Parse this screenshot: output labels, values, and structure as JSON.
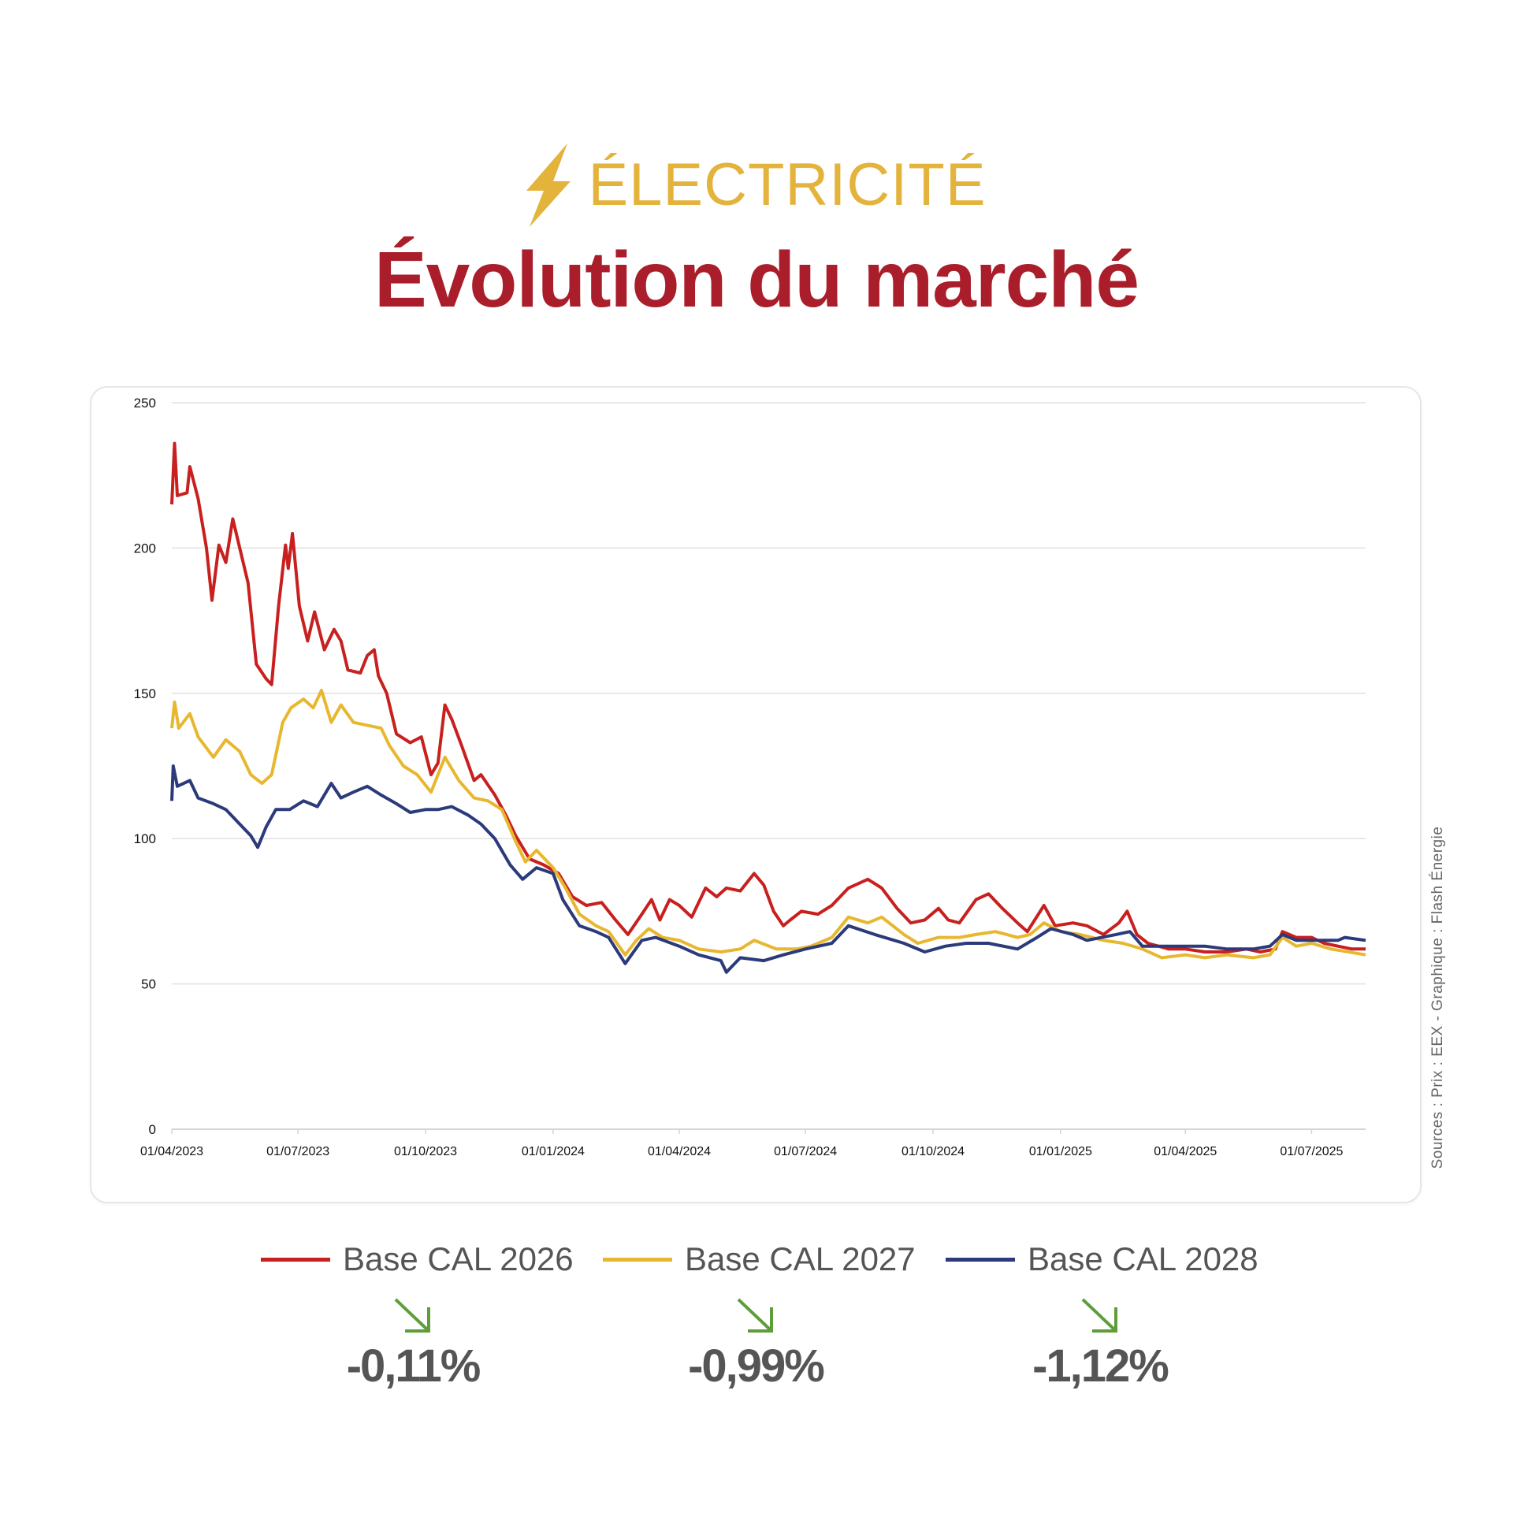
{
  "header": {
    "kicker": "ÉLECTRICITÉ",
    "kicker_icon": "lightning-bolt-icon",
    "title": "Évolution du marché",
    "kicker_color": "#e4b33c",
    "title_color": "#a91e2a"
  },
  "source": "Sources : Prix : EEX - Graphique : Flash Énergie",
  "legend": [
    {
      "label": "Base CAL 2026",
      "color": "#c8201f"
    },
    {
      "label": "Base CAL 2027",
      "color": "#e8b730"
    },
    {
      "label": "Base CAL 2028",
      "color": "#2b3a7a"
    }
  ],
  "changes": [
    {
      "value": "-0,11%",
      "icon": "arrow-down-right-icon",
      "color": "#5e9e3a"
    },
    {
      "value": "-0,99%",
      "icon": "arrow-down-right-icon",
      "color": "#5e9e3a"
    },
    {
      "value": "-1,12%",
      "icon": "arrow-down-right-icon",
      "color": "#5e9e3a"
    }
  ],
  "chart_data": {
    "type": "line",
    "title": "",
    "xlabel": "",
    "ylabel": "",
    "ylim": [
      0,
      250
    ],
    "yticks": [
      0,
      50,
      100,
      150,
      200,
      250
    ],
    "xlim": [
      "2023-04-01",
      "2025-08-09"
    ],
    "xticks": [
      "2023-04-01",
      "2023-07-01",
      "2023-10-01",
      "2024-01-01",
      "2024-04-01",
      "2024-07-01",
      "2024-10-01",
      "2025-01-01",
      "2025-04-01",
      "2025-07-01"
    ],
    "xtick_labels": [
      "01/04/2023",
      "01/07/2023",
      "01/10/2023",
      "01/01/2024",
      "01/04/2024",
      "01/07/2024",
      "01/10/2024",
      "01/01/2025",
      "01/04/2025",
      "01/07/2025"
    ],
    "grid": "horizontal",
    "legend_position": "bottom",
    "series": [
      {
        "name": "Base CAL 2026",
        "color": "#c8201f",
        "points": [
          [
            "2023-04-01",
            215
          ],
          [
            "2023-04-03",
            236
          ],
          [
            "2023-04-05",
            218
          ],
          [
            "2023-04-12",
            219
          ],
          [
            "2023-04-14",
            228
          ],
          [
            "2023-04-20",
            217
          ],
          [
            "2023-04-26",
            200
          ],
          [
            "2023-04-30",
            182
          ],
          [
            "2023-05-05",
            201
          ],
          [
            "2023-05-10",
            195
          ],
          [
            "2023-05-15",
            210
          ],
          [
            "2023-05-20",
            200
          ],
          [
            "2023-05-26",
            188
          ],
          [
            "2023-06-01",
            160
          ],
          [
            "2023-06-08",
            155
          ],
          [
            "2023-06-12",
            153
          ],
          [
            "2023-06-17",
            180
          ],
          [
            "2023-06-22",
            201
          ],
          [
            "2023-06-24",
            193
          ],
          [
            "2023-06-27",
            205
          ],
          [
            "2023-07-02",
            180
          ],
          [
            "2023-07-08",
            168
          ],
          [
            "2023-07-13",
            178
          ],
          [
            "2023-07-20",
            165
          ],
          [
            "2023-07-27",
            172
          ],
          [
            "2023-08-01",
            168
          ],
          [
            "2023-08-06",
            158
          ],
          [
            "2023-08-15",
            157
          ],
          [
            "2023-08-20",
            163
          ],
          [
            "2023-08-25",
            165
          ],
          [
            "2023-08-28",
            156
          ],
          [
            "2023-09-03",
            150
          ],
          [
            "2023-09-10",
            136
          ],
          [
            "2023-09-20",
            133
          ],
          [
            "2023-09-28",
            135
          ],
          [
            "2023-10-05",
            122
          ],
          [
            "2023-10-10",
            126
          ],
          [
            "2023-10-15",
            146
          ],
          [
            "2023-10-20",
            141
          ],
          [
            "2023-10-27",
            132
          ],
          [
            "2023-11-05",
            120
          ],
          [
            "2023-11-10",
            122
          ],
          [
            "2023-11-20",
            115
          ],
          [
            "2023-11-28",
            108
          ],
          [
            "2023-12-05",
            101
          ],
          [
            "2023-12-15",
            93
          ],
          [
            "2023-12-25",
            91
          ],
          [
            "2024-01-05",
            88
          ],
          [
            "2024-01-15",
            80
          ],
          [
            "2024-01-25",
            77
          ],
          [
            "2024-02-05",
            78
          ],
          [
            "2024-02-15",
            72
          ],
          [
            "2024-02-24",
            67
          ],
          [
            "2024-03-05",
            74
          ],
          [
            "2024-03-12",
            79
          ],
          [
            "2024-03-18",
            72
          ],
          [
            "2024-03-25",
            79
          ],
          [
            "2024-04-01",
            77
          ],
          [
            "2024-04-10",
            73
          ],
          [
            "2024-04-20",
            83
          ],
          [
            "2024-04-28",
            80
          ],
          [
            "2024-05-05",
            83
          ],
          [
            "2024-05-15",
            82
          ],
          [
            "2024-05-25",
            88
          ],
          [
            "2024-06-01",
            84
          ],
          [
            "2024-06-08",
            75
          ],
          [
            "2024-06-15",
            70
          ],
          [
            "2024-06-20",
            72
          ],
          [
            "2024-06-28",
            75
          ],
          [
            "2024-07-10",
            74
          ],
          [
            "2024-07-20",
            77
          ],
          [
            "2024-08-01",
            83
          ],
          [
            "2024-08-15",
            86
          ],
          [
            "2024-08-25",
            83
          ],
          [
            "2024-09-05",
            76
          ],
          [
            "2024-09-15",
            71
          ],
          [
            "2024-09-25",
            72
          ],
          [
            "2024-10-05",
            76
          ],
          [
            "2024-10-12",
            72
          ],
          [
            "2024-10-20",
            71
          ],
          [
            "2024-11-01",
            79
          ],
          [
            "2024-11-10",
            81
          ],
          [
            "2024-11-20",
            76
          ],
          [
            "2024-12-01",
            71
          ],
          [
            "2024-12-08",
            68
          ],
          [
            "2024-12-20",
            77
          ],
          [
            "2024-12-28",
            70
          ],
          [
            "2025-01-10",
            71
          ],
          [
            "2025-01-20",
            70
          ],
          [
            "2025-02-01",
            67
          ],
          [
            "2025-02-12",
            71
          ],
          [
            "2025-02-18",
            75
          ],
          [
            "2025-02-25",
            67
          ],
          [
            "2025-03-05",
            64
          ],
          [
            "2025-03-20",
            62
          ],
          [
            "2025-04-01",
            62
          ],
          [
            "2025-04-15",
            61
          ],
          [
            "2025-05-01",
            61
          ],
          [
            "2025-05-15",
            62
          ],
          [
            "2025-05-25",
            61
          ],
          [
            "2025-06-05",
            62
          ],
          [
            "2025-06-10",
            68
          ],
          [
            "2025-06-20",
            66
          ],
          [
            "2025-07-01",
            66
          ],
          [
            "2025-07-10",
            64
          ],
          [
            "2025-07-20",
            63
          ],
          [
            "2025-07-30",
            62
          ],
          [
            "2025-08-09",
            62
          ]
        ]
      },
      {
        "name": "Base CAL 2027",
        "color": "#e8b730",
        "points": [
          [
            "2023-04-01",
            138
          ],
          [
            "2023-04-03",
            147
          ],
          [
            "2023-04-06",
            138
          ],
          [
            "2023-04-14",
            143
          ],
          [
            "2023-04-20",
            135
          ],
          [
            "2023-05-01",
            128
          ],
          [
            "2023-05-10",
            134
          ],
          [
            "2023-05-20",
            130
          ],
          [
            "2023-05-28",
            122
          ],
          [
            "2023-06-05",
            119
          ],
          [
            "2023-06-12",
            122
          ],
          [
            "2023-06-20",
            140
          ],
          [
            "2023-06-26",
            145
          ],
          [
            "2023-07-05",
            148
          ],
          [
            "2023-07-12",
            145
          ],
          [
            "2023-07-18",
            151
          ],
          [
            "2023-07-25",
            140
          ],
          [
            "2023-08-01",
            146
          ],
          [
            "2023-08-10",
            140
          ],
          [
            "2023-08-20",
            139
          ],
          [
            "2023-08-30",
            138
          ],
          [
            "2023-09-05",
            132
          ],
          [
            "2023-09-15",
            125
          ],
          [
            "2023-09-25",
            122
          ],
          [
            "2023-10-05",
            116
          ],
          [
            "2023-10-15",
            128
          ],
          [
            "2023-10-25",
            120
          ],
          [
            "2023-11-05",
            114
          ],
          [
            "2023-11-15",
            113
          ],
          [
            "2023-11-25",
            110
          ],
          [
            "2023-12-05",
            99
          ],
          [
            "2023-12-12",
            92
          ],
          [
            "2023-12-20",
            96
          ],
          [
            "2024-01-01",
            90
          ],
          [
            "2024-01-10",
            83
          ],
          [
            "2024-01-20",
            74
          ],
          [
            "2024-02-01",
            70
          ],
          [
            "2024-02-10",
            68
          ],
          [
            "2024-02-22",
            60
          ],
          [
            "2024-03-01",
            65
          ],
          [
            "2024-03-10",
            69
          ],
          [
            "2024-03-20",
            66
          ],
          [
            "2024-04-01",
            65
          ],
          [
            "2024-04-15",
            62
          ],
          [
            "2024-05-01",
            61
          ],
          [
            "2024-05-15",
            62
          ],
          [
            "2024-05-25",
            65
          ],
          [
            "2024-06-10",
            62
          ],
          [
            "2024-06-25",
            62
          ],
          [
            "2024-07-05",
            63
          ],
          [
            "2024-07-20",
            66
          ],
          [
            "2024-08-01",
            73
          ],
          [
            "2024-08-15",
            71
          ],
          [
            "2024-08-25",
            73
          ],
          [
            "2024-09-10",
            67
          ],
          [
            "2024-09-20",
            64
          ],
          [
            "2024-10-05",
            66
          ],
          [
            "2024-10-20",
            66
          ],
          [
            "2024-11-01",
            67
          ],
          [
            "2024-11-15",
            68
          ],
          [
            "2024-12-01",
            66
          ],
          [
            "2024-12-10",
            67
          ],
          [
            "2024-12-20",
            71
          ],
          [
            "2025-01-01",
            68
          ],
          [
            "2025-01-15",
            67
          ],
          [
            "2025-02-01",
            65
          ],
          [
            "2025-02-15",
            64
          ],
          [
            "2025-03-01",
            62
          ],
          [
            "2025-03-15",
            59
          ],
          [
            "2025-04-01",
            60
          ],
          [
            "2025-04-15",
            59
          ],
          [
            "2025-05-01",
            60
          ],
          [
            "2025-05-20",
            59
          ],
          [
            "2025-06-01",
            60
          ],
          [
            "2025-06-10",
            66
          ],
          [
            "2025-06-20",
            63
          ],
          [
            "2025-07-01",
            64
          ],
          [
            "2025-07-15",
            62
          ],
          [
            "2025-08-09",
            60
          ]
        ]
      },
      {
        "name": "Base CAL 2028",
        "color": "#2b3a7a",
        "points": [
          [
            "2023-04-01",
            113
          ],
          [
            "2023-04-02",
            125
          ],
          [
            "2023-04-05",
            118
          ],
          [
            "2023-04-14",
            120
          ],
          [
            "2023-04-20",
            114
          ],
          [
            "2023-05-01",
            112
          ],
          [
            "2023-05-10",
            110
          ],
          [
            "2023-05-20",
            105
          ],
          [
            "2023-05-28",
            101
          ],
          [
            "2023-06-02",
            97
          ],
          [
            "2023-06-08",
            104
          ],
          [
            "2023-06-15",
            110
          ],
          [
            "2023-06-25",
            110
          ],
          [
            "2023-07-05",
            113
          ],
          [
            "2023-07-15",
            111
          ],
          [
            "2023-07-25",
            119
          ],
          [
            "2023-08-01",
            114
          ],
          [
            "2023-08-10",
            116
          ],
          [
            "2023-08-20",
            118
          ],
          [
            "2023-08-30",
            115
          ],
          [
            "2023-09-10",
            112
          ],
          [
            "2023-09-20",
            109
          ],
          [
            "2023-10-01",
            110
          ],
          [
            "2023-10-10",
            110
          ],
          [
            "2023-10-20",
            111
          ],
          [
            "2023-11-01",
            108
          ],
          [
            "2023-11-10",
            105
          ],
          [
            "2023-11-20",
            100
          ],
          [
            "2023-12-01",
            91
          ],
          [
            "2023-12-10",
            86
          ],
          [
            "2023-12-20",
            90
          ],
          [
            "2024-01-01",
            88
          ],
          [
            "2024-01-08",
            79
          ],
          [
            "2024-01-20",
            70
          ],
          [
            "2024-02-01",
            68
          ],
          [
            "2024-02-10",
            66
          ],
          [
            "2024-02-22",
            57
          ],
          [
            "2024-03-05",
            65
          ],
          [
            "2024-03-15",
            66
          ],
          [
            "2024-04-01",
            63
          ],
          [
            "2024-04-15",
            60
          ],
          [
            "2024-05-01",
            58
          ],
          [
            "2024-05-05",
            54
          ],
          [
            "2024-05-15",
            59
          ],
          [
            "2024-06-01",
            58
          ],
          [
            "2024-06-15",
            60
          ],
          [
            "2024-07-01",
            62
          ],
          [
            "2024-07-20",
            64
          ],
          [
            "2024-08-01",
            70
          ],
          [
            "2024-08-20",
            67
          ],
          [
            "2024-09-10",
            64
          ],
          [
            "2024-09-25",
            61
          ],
          [
            "2024-10-10",
            63
          ],
          [
            "2024-10-25",
            64
          ],
          [
            "2024-11-10",
            64
          ],
          [
            "2024-12-01",
            62
          ],
          [
            "2024-12-15",
            66
          ],
          [
            "2024-12-25",
            69
          ],
          [
            "2025-01-10",
            67
          ],
          [
            "2025-01-20",
            65
          ],
          [
            "2025-02-10",
            67
          ],
          [
            "2025-02-20",
            68
          ],
          [
            "2025-03-01",
            63
          ],
          [
            "2025-03-20",
            63
          ],
          [
            "2025-04-15",
            63
          ],
          [
            "2025-05-01",
            62
          ],
          [
            "2025-05-20",
            62
          ],
          [
            "2025-06-01",
            63
          ],
          [
            "2025-06-10",
            67
          ],
          [
            "2025-06-20",
            65
          ],
          [
            "2025-07-01",
            65
          ],
          [
            "2025-07-20",
            65
          ],
          [
            "2025-07-25",
            66
          ],
          [
            "2025-08-09",
            65
          ]
        ]
      }
    ]
  }
}
